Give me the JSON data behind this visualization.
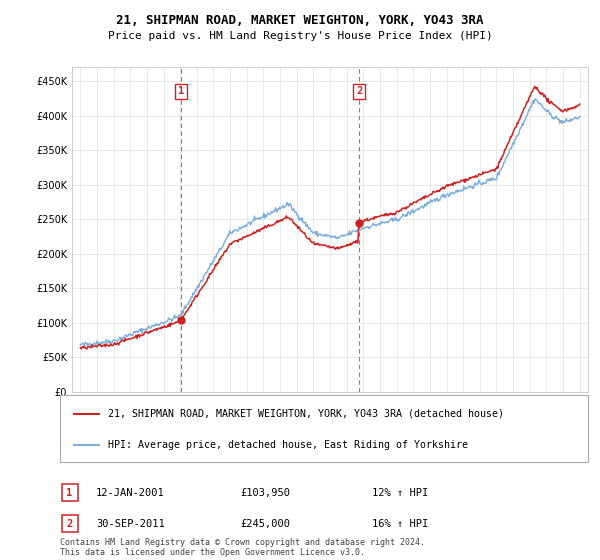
{
  "title1": "21, SHIPMAN ROAD, MARKET WEIGHTON, YORK, YO43 3RA",
  "title2": "Price paid vs. HM Land Registry's House Price Index (HPI)",
  "legend_line1": "21, SHIPMAN ROAD, MARKET WEIGHTON, YORK, YO43 3RA (detached house)",
  "legend_line2": "HPI: Average price, detached house, East Riding of Yorkshire",
  "transaction1_label": "1",
  "transaction1_date": "12-JAN-2001",
  "transaction1_price": "£103,950",
  "transaction1_hpi": "12% ↑ HPI",
  "transaction1_year": 2001.04,
  "transaction1_value": 103950,
  "transaction2_label": "2",
  "transaction2_date": "30-SEP-2011",
  "transaction2_price": "£245,000",
  "transaction2_hpi": "16% ↑ HPI",
  "transaction2_year": 2011.75,
  "transaction2_value": 245000,
  "footnote": "Contains HM Land Registry data © Crown copyright and database right 2024.\nThis data is licensed under the Open Government Licence v3.0.",
  "hpi_color": "#7aaddc",
  "price_color": "#cc2222",
  "vline_color": "#cc2222",
  "grid_color": "#e0e0e0",
  "spine_color": "#cccccc",
  "ylim_min": 0,
  "ylim_max": 470000,
  "xlim_min": 1994.5,
  "xlim_max": 2025.5,
  "yticks": [
    0,
    50000,
    100000,
    150000,
    200000,
    250000,
    300000,
    350000,
    400000,
    450000
  ],
  "fig_width": 6.0,
  "fig_height": 5.6,
  "dpi": 100
}
